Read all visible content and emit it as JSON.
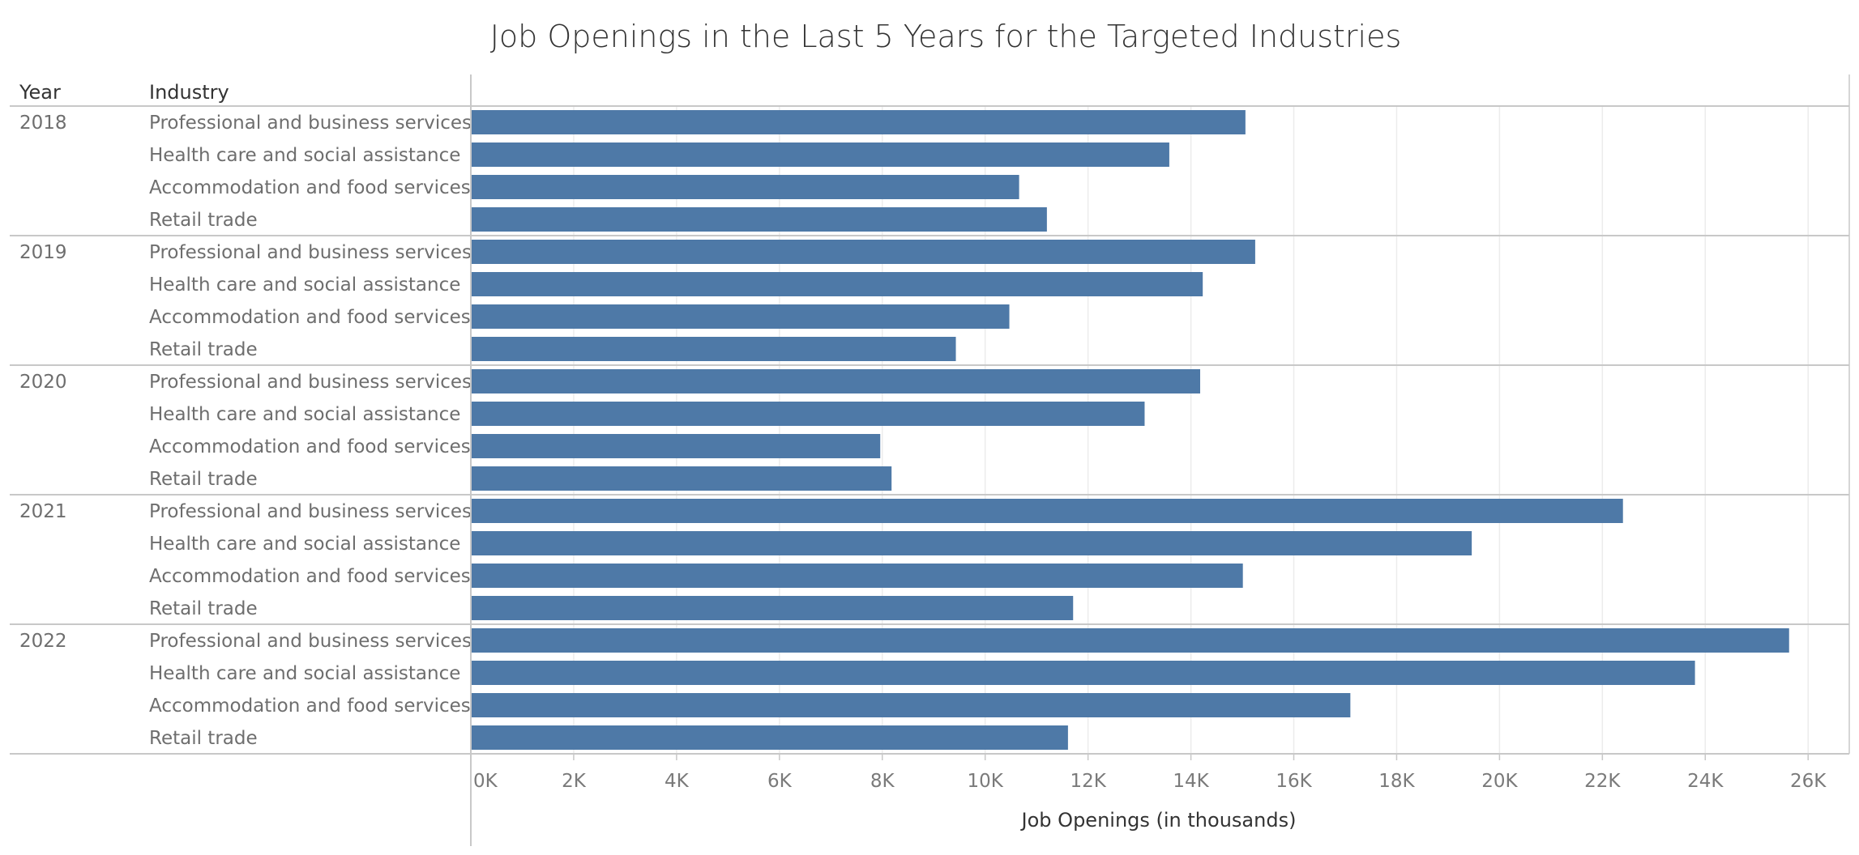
{
  "chart_data": {
    "type": "bar",
    "orientation": "horizontal",
    "title": "Job Openings in the Last 5 Years for the Targeted Industries",
    "row_headers": [
      "Year",
      "Industry"
    ],
    "xlabel": "Job Openings (in thousands)",
    "xlim": [
      0,
      26800
    ],
    "x_ticks": [
      0,
      2000,
      4000,
      6000,
      8000,
      10000,
      12000,
      14000,
      16000,
      18000,
      20000,
      22000,
      24000,
      26000
    ],
    "x_tick_labels": [
      "0K",
      "2K",
      "4K",
      "6K",
      "8K",
      "10K",
      "12K",
      "14K",
      "16K",
      "18K",
      "20K",
      "22K",
      "24K",
      "26K"
    ],
    "grid": true,
    "bar_color": "#4e79a7",
    "groups": [
      {
        "year": "2018",
        "rows": [
          {
            "industry": "Professional and business services",
            "value": 15060
          },
          {
            "industry": "Health care and social assistance",
            "value": 13580
          },
          {
            "industry": "Accommodation and food services",
            "value": 10660
          },
          {
            "industry": "Retail trade",
            "value": 11200
          }
        ]
      },
      {
        "year": "2019",
        "rows": [
          {
            "industry": "Professional and business services",
            "value": 15250
          },
          {
            "industry": "Health care and social assistance",
            "value": 14230
          },
          {
            "industry": "Accommodation and food services",
            "value": 10470
          },
          {
            "industry": "Retail trade",
            "value": 9430
          }
        ]
      },
      {
        "year": "2020",
        "rows": [
          {
            "industry": "Professional and business services",
            "value": 14180
          },
          {
            "industry": "Health care and social assistance",
            "value": 13100
          },
          {
            "industry": "Accommodation and food services",
            "value": 7960
          },
          {
            "industry": "Retail trade",
            "value": 8180
          }
        ]
      },
      {
        "year": "2021",
        "rows": [
          {
            "industry": "Professional and business services",
            "value": 22400
          },
          {
            "industry": "Health care and social assistance",
            "value": 19460
          },
          {
            "industry": "Accommodation and food services",
            "value": 15010
          },
          {
            "industry": "Retail trade",
            "value": 11710
          }
        ]
      },
      {
        "year": "2022",
        "rows": [
          {
            "industry": "Professional and business services",
            "value": 25630
          },
          {
            "industry": "Health care and social assistance",
            "value": 23800
          },
          {
            "industry": "Accommodation and food services",
            "value": 17100
          },
          {
            "industry": "Retail trade",
            "value": 11610
          }
        ]
      }
    ]
  }
}
